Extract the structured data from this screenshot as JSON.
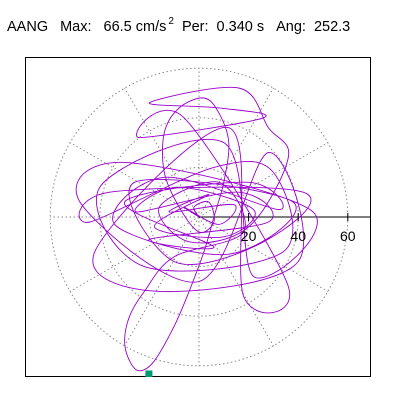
{
  "header": {
    "channel": "AANG",
    "max_label": "Max:",
    "max_value": "66.5 cm/s",
    "max_exponent": "2",
    "per_label": "Per:",
    "per_value": "0.340 s",
    "ang_label": "Ang:",
    "ang_value": "252.3"
  },
  "chart_data": {
    "type": "scatter",
    "title": "",
    "xlabel": "",
    "ylabel": "",
    "coordinate_system": "polar",
    "radial_ticks": [
      "20",
      "40",
      "60"
    ],
    "radial_tick_values": [
      20,
      40,
      60
    ],
    "radial_grid_circles": [
      20,
      40,
      60
    ],
    "angular_grid_step_deg": 30,
    "grid": true,
    "xlim": [
      -72,
      72
    ],
    "ylim": [
      -66,
      66
    ],
    "max_value": 66.5,
    "max_angle_deg": 252.3,
    "colors": {
      "trace": "#9900cc",
      "peak_marker": "#009977",
      "grid": "#888888",
      "axis": "#000000"
    },
    "series": [
      {
        "points": [
          [
            0,
            0
          ],
          [
            -6,
            4
          ],
          [
            8,
            -3
          ],
          [
            14,
            5
          ],
          [
            -12,
            2
          ],
          [
            4,
            9
          ],
          [
            -18,
            -4
          ],
          [
            10,
            -8
          ],
          [
            22,
            3
          ],
          [
            -9,
            12
          ],
          [
            -25,
            2
          ],
          [
            16,
            10
          ],
          [
            28,
            -2
          ],
          [
            -20,
            -9
          ],
          [
            6,
            -12
          ],
          [
            -30,
            6
          ],
          [
            20,
            14
          ],
          [
            32,
            3
          ],
          [
            -14,
            16
          ],
          [
            -34,
            -3
          ],
          [
            12,
            -15
          ],
          [
            38,
            6
          ],
          [
            -26,
            14
          ],
          [
            -10,
            -18
          ],
          [
            26,
            -10
          ],
          [
            42,
            10
          ],
          [
            -36,
            10
          ],
          [
            -44,
            -2
          ],
          [
            6,
            20
          ],
          [
            30,
            18
          ],
          [
            34,
            -14
          ],
          [
            -22,
            -20
          ],
          [
            -40,
            12
          ],
          [
            10,
            30
          ],
          [
            22,
            -24
          ],
          [
            46,
            2
          ],
          [
            -30,
            22
          ],
          [
            -48,
            6
          ],
          [
            0,
            -26
          ],
          [
            28,
            26
          ],
          [
            40,
            -18
          ],
          [
            -16,
            -30
          ],
          [
            -42,
            -14
          ],
          [
            12,
            36
          ],
          [
            18,
            -32
          ],
          [
            36,
            -28
          ],
          [
            -6,
            40
          ],
          [
            -24,
            32
          ],
          [
            26,
            40
          ],
          [
            8,
            44
          ],
          [
            -20,
            46
          ],
          [
            16,
            52
          ],
          [
            28,
            36
          ],
          [
            36,
            24
          ],
          [
            20,
            -4
          ],
          [
            -4,
            -10
          ],
          [
            -16,
            4
          ],
          [
            8,
            14
          ],
          [
            18,
            -6
          ],
          [
            -10,
            -16
          ],
          [
            -22,
            -30
          ],
          [
            -28,
            -40
          ],
          [
            -30,
            -50
          ],
          [
            -28,
            -58
          ],
          [
            -24,
            -62
          ],
          [
            -18,
            -58
          ],
          [
            -10,
            -44
          ],
          [
            -4,
            -30
          ],
          [
            2,
            -14
          ],
          [
            6,
            0
          ],
          [
            10,
            14
          ],
          [
            12,
            30
          ],
          [
            8,
            42
          ],
          [
            2,
            48
          ],
          [
            -8,
            44
          ],
          [
            -14,
            34
          ],
          [
            -14,
            18
          ],
          [
            -8,
            4
          ],
          [
            0,
            -6
          ],
          [
            6,
            -2
          ],
          [
            4,
            6
          ],
          [
            -2,
            4
          ],
          [
            0,
            0
          ]
        ]
      }
    ],
    "peak_point": [
      -20.2,
      -63.3
    ]
  }
}
